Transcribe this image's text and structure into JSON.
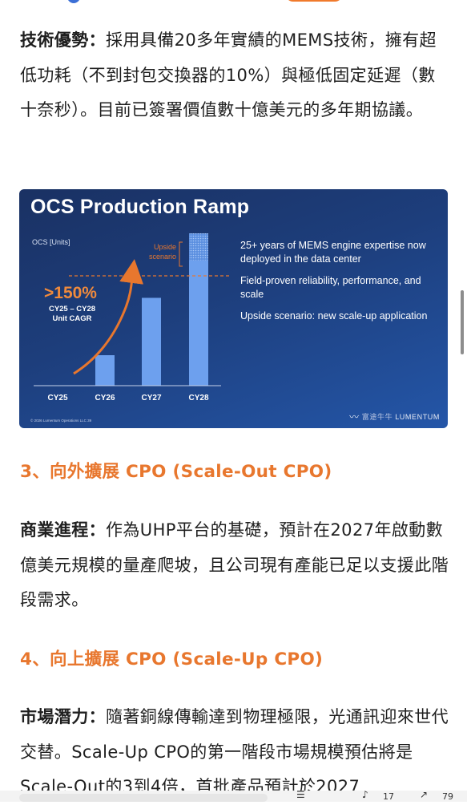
{
  "section2": {
    "label": "技術優勢：",
    "text": "採用具備20多年實績的MEMS技術，擁有超低功耗（不到封包交換器的10%）與極低固定延遲（數十奈秒）。目前已簽署價值數十億美元的多年期協議。"
  },
  "slide": {
    "title": "OCS Production Ramp",
    "axis_label": "OCS [Units]",
    "upside_label_1": "Upside",
    "upside_label_2": "scenario",
    "cagr_value": ">150%",
    "cagr_line1": "CY25 – CY28",
    "cagr_line2": "Unit CAGR",
    "bullets": [
      "25+ years of MEMS engine expertise now deployed in the data center",
      "Field-proven reliability, performance, and scale",
      "Upside scenario: new scale-up application"
    ],
    "footnote": "© 2026 Lumentum Operations LLC   39",
    "watermark": "富途牛牛",
    "brand": "LUMENTUM",
    "colors": {
      "bar": "#6da0ee",
      "arrow": "#e8772e",
      "background": "#1d3e7c"
    }
  },
  "chart_data": {
    "type": "bar",
    "categories": [
      "CY25",
      "CY26",
      "CY27",
      "CY28"
    ],
    "values": [
      0,
      1.7,
      4.9,
      7.0
    ],
    "upside_extra": [
      0,
      0,
      0,
      1.5
    ],
    "ylabel": "OCS [Units]",
    "grid": false
  },
  "section3": {
    "heading": "3、向外擴展 CPO (Scale-Out CPO)",
    "label": "商業進程：",
    "text": "作為UHP平台的基礎，預計在2027年啟動數億美元規模的量產爬坡，且公司現有產能已足以支援此階段需求。"
  },
  "section4": {
    "heading": "4、向上擴展 CPO (Scale-Up CPO)",
    "label": "市場潛力：",
    "text": "隨著銅線傳輸達到物理極限，光通訊迎來世代交替。Scale-Up CPO的第一階段市場規模預估將是Scale-Out的3到4倍，首批產品預計於2027"
  },
  "bottom_bar": {
    "like_count": "17",
    "share_count": "79"
  }
}
